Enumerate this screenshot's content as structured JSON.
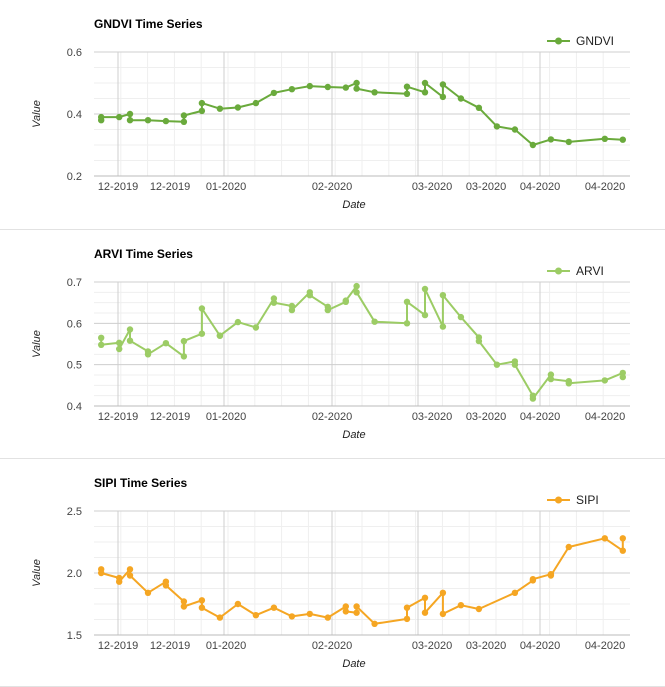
{
  "chart_data": [
    {
      "type": "line",
      "title": "GNDVI Time Series",
      "xlabel": "Date",
      "ylabel": "Value",
      "ylim": [
        0.2,
        0.6
      ],
      "yticks": [
        "0.2",
        "0.4",
        "0.6"
      ],
      "xticks": [
        "12-2019",
        "12-2019",
        "01-2020",
        "02-2020",
        "03-2020",
        "03-2020",
        "04-2020",
        "04-2020"
      ],
      "legend": "top-right",
      "grid": true,
      "series": [
        {
          "name": "GNDVI",
          "color": "#6aaa3c",
          "x": [
            "2019-11-27",
            "2019-11-27",
            "2019-12-02",
            "2019-12-05",
            "2019-12-05",
            "2019-12-10",
            "2019-12-15",
            "2019-12-20",
            "2019-12-20",
            "2019-12-25",
            "2019-12-25",
            "2019-12-30",
            "2020-01-04",
            "2020-01-09",
            "2020-01-14",
            "2020-01-19",
            "2020-01-24",
            "2020-01-29",
            "2020-02-03",
            "2020-02-06",
            "2020-02-06",
            "2020-02-11",
            "2020-02-20",
            "2020-02-20",
            "2020-02-25",
            "2020-02-25",
            "2020-03-01",
            "2020-03-01",
            "2020-03-06",
            "2020-03-11",
            "2020-03-16",
            "2020-03-21",
            "2020-03-26",
            "2020-03-31",
            "2020-04-05",
            "2020-04-15",
            "2020-04-20"
          ],
          "values": [
            0.38,
            0.39,
            0.39,
            0.4,
            0.38,
            0.38,
            0.377,
            0.375,
            0.395,
            0.41,
            0.435,
            0.417,
            0.421,
            0.435,
            0.468,
            0.48,
            0.49,
            0.487,
            0.485,
            0.5,
            0.482,
            0.47,
            0.465,
            0.488,
            0.47,
            0.5,
            0.455,
            0.495,
            0.45,
            0.42,
            0.36,
            0.35,
            0.3,
            0.318,
            0.31,
            0.32,
            0.317
          ]
        }
      ]
    },
    {
      "type": "line",
      "title": "ARVI Time Series",
      "xlabel": "Date",
      "ylabel": "Value",
      "ylim": [
        0.4,
        0.7
      ],
      "yticks": [
        "0.4",
        "0.5",
        "0.6",
        "0.7"
      ],
      "xticks": [
        "12-2019",
        "12-2019",
        "01-2020",
        "02-2020",
        "03-2020",
        "03-2020",
        "04-2020",
        "04-2020"
      ],
      "legend": "top-right",
      "grid": true,
      "series": [
        {
          "name": "ARVI",
          "color": "#9ccc65",
          "x": [
            "2019-11-27",
            "2019-11-27",
            "2019-12-02",
            "2019-12-02",
            "2019-12-05",
            "2019-12-05",
            "2019-12-10",
            "2019-12-10",
            "2019-12-15",
            "2019-12-20",
            "2019-12-20",
            "2019-12-25",
            "2019-12-25",
            "2019-12-30",
            "2019-12-30",
            "2020-01-04",
            "2020-01-09",
            "2020-01-14",
            "2020-01-14",
            "2020-01-19",
            "2020-01-19",
            "2020-01-24",
            "2020-01-24",
            "2020-01-29",
            "2020-01-29",
            "2020-02-03",
            "2020-02-03",
            "2020-02-06",
            "2020-02-06",
            "2020-02-11",
            "2020-02-20",
            "2020-02-20",
            "2020-02-25",
            "2020-02-25",
            "2020-03-01",
            "2020-03-01",
            "2020-03-06",
            "2020-03-11",
            "2020-03-11",
            "2020-03-16",
            "2020-03-21",
            "2020-03-21",
            "2020-03-26",
            "2020-03-26",
            "2020-03-31",
            "2020-03-31",
            "2020-04-05",
            "2020-04-05",
            "2020-04-15",
            "2020-04-20",
            "2020-04-20"
          ],
          "values": [
            0.565,
            0.548,
            0.553,
            0.538,
            0.585,
            0.558,
            0.532,
            0.525,
            0.552,
            0.52,
            0.557,
            0.575,
            0.636,
            0.57,
            0.57,
            0.603,
            0.59,
            0.66,
            0.65,
            0.642,
            0.632,
            0.675,
            0.668,
            0.64,
            0.632,
            0.652,
            0.655,
            0.69,
            0.675,
            0.604,
            0.6,
            0.652,
            0.62,
            0.683,
            0.592,
            0.668,
            0.615,
            0.566,
            0.557,
            0.5,
            0.508,
            0.5,
            0.425,
            0.418,
            0.476,
            0.465,
            0.46,
            0.455,
            0.462,
            0.48,
            0.47
          ]
        }
      ]
    },
    {
      "type": "line",
      "title": "SIPI Time Series",
      "xlabel": "Date",
      "ylabel": "Value",
      "ylim": [
        1.5,
        2.5
      ],
      "yticks": [
        "1.5",
        "2.0",
        "2.5"
      ],
      "xticks": [
        "12-2019",
        "12-2019",
        "01-2020",
        "02-2020",
        "03-2020",
        "03-2020",
        "04-2020",
        "04-2020"
      ],
      "legend": "top-right",
      "grid": true,
      "series": [
        {
          "name": "SIPI",
          "color": "#f5a623",
          "x": [
            "2019-11-27",
            "2019-11-27",
            "2019-12-02",
            "2019-12-02",
            "2019-12-05",
            "2019-12-05",
            "2019-12-10",
            "2019-12-15",
            "2019-12-15",
            "2019-12-20",
            "2019-12-20",
            "2019-12-25",
            "2019-12-25",
            "2019-12-30",
            "2020-01-04",
            "2020-01-09",
            "2020-01-14",
            "2020-01-19",
            "2020-01-24",
            "2020-01-29",
            "2020-02-03",
            "2020-02-03",
            "2020-02-06",
            "2020-02-06",
            "2020-02-11",
            "2020-02-20",
            "2020-02-20",
            "2020-02-25",
            "2020-02-25",
            "2020-03-01",
            "2020-03-01",
            "2020-03-06",
            "2020-03-11",
            "2020-03-21",
            "2020-03-26",
            "2020-03-26",
            "2020-03-31",
            "2020-03-31",
            "2020-04-05",
            "2020-04-15",
            "2020-04-20",
            "2020-04-20"
          ],
          "values": [
            2.03,
            2.0,
            1.96,
            1.93,
            2.03,
            1.98,
            1.84,
            1.93,
            1.9,
            1.77,
            1.73,
            1.78,
            1.72,
            1.64,
            1.75,
            1.66,
            1.72,
            1.65,
            1.67,
            1.64,
            1.73,
            1.69,
            1.68,
            1.73,
            1.59,
            1.63,
            1.72,
            1.8,
            1.68,
            1.84,
            1.67,
            1.74,
            1.71,
            1.84,
            1.94,
            1.95,
            1.99,
            1.98,
            2.21,
            2.28,
            2.18,
            2.28
          ]
        }
      ]
    }
  ]
}
